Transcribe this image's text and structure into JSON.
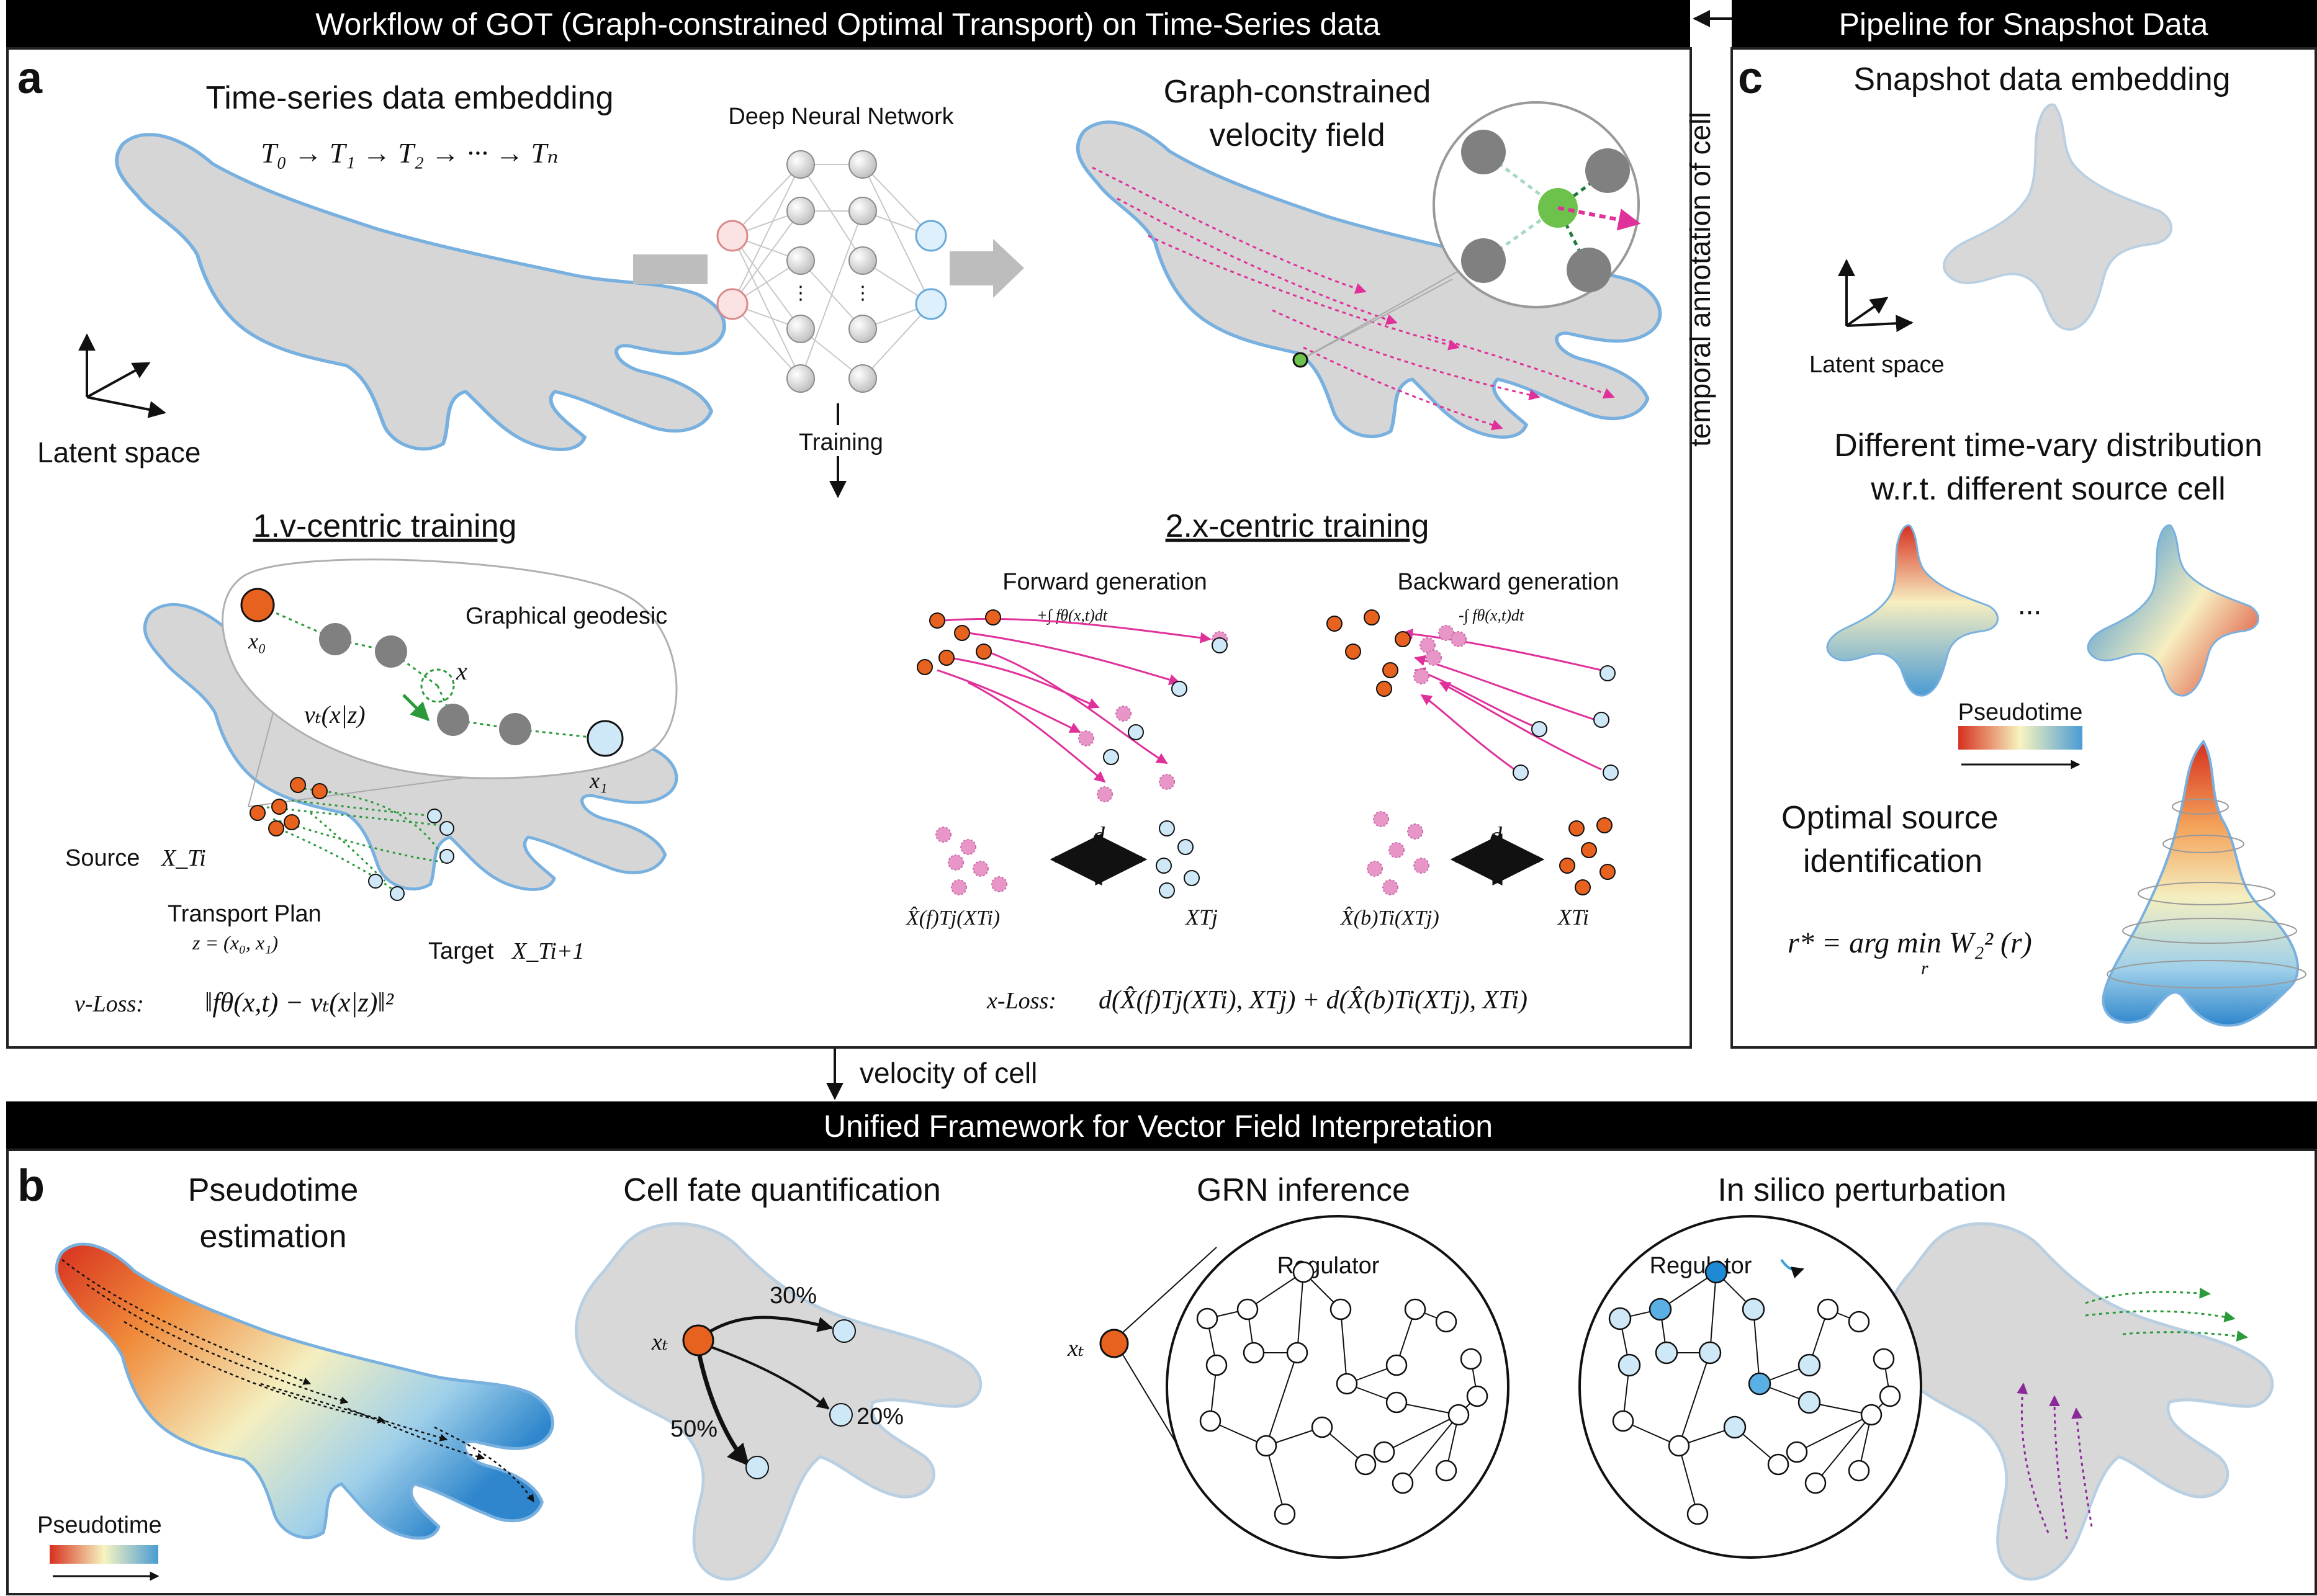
{
  "banners": {
    "top": "Workflow of GOT (Graph-constrained Optimal Transport) on Time-Series data",
    "right": "Pipeline for Snapshot Data",
    "bottom": "Unified Framework for Vector Field Interpretation"
  },
  "panel_letters": {
    "a": "a",
    "b": "b",
    "c": "c"
  },
  "panel_a": {
    "embedding_title": "Time-series data embedding",
    "time_sequence": "T₀ → T₁ → T₂ → ··· → Tₙ",
    "latent_space": "Latent space",
    "dnn_title": "Deep Neural Network",
    "training": "Training",
    "velocity_title_line1": "Graph-constrained",
    "velocity_title_line2": "velocity field",
    "v_centric": {
      "title": "1.v-centric training",
      "graphical_geodesic": "Graphical geodesic",
      "x0": "x₀",
      "x": "x",
      "x1": "x₁",
      "vt": "vₜ(x|z)",
      "source": "Source",
      "source_sym": "X_Ti",
      "transport_plan": "Transport Plan",
      "z_eq": "z = (x₀, x₁)",
      "target": "Target",
      "target_sym": "X_Ti+1",
      "loss_label": "v-Loss:",
      "loss_formula": "‖fθ(x,t) − vₜ(x|z)‖²"
    },
    "x_centric": {
      "title": "2.x-centric training",
      "forward": "Forward generation",
      "backward": "Backward generation",
      "forward_integral": "+∫ fθ(x,t)dt",
      "backward_integral": "-∫ fθ(x,t)dt",
      "d1": "d",
      "d2": "d",
      "xhat_f": "X̂(f)Tj(XTi)",
      "xtj": "XTj",
      "xhat_b": "X̂(b)Ti(XTj)",
      "xti": "XTi",
      "loss_label": "x-Loss:",
      "loss_formula": "d(X̂(f)Tj(XTi), XTj) + d(X̂(b)Ti(XTj), XTi)"
    }
  },
  "side_label": "temporal annotation of cell",
  "velocity_of_cell": "velocity of cell",
  "panel_c": {
    "snapshot_title": "Snapshot data embedding",
    "latent_space": "Latent space",
    "dist_title_line1": "Different time-vary distribution",
    "dist_title_line2": "w.r.t. different source cell",
    "ellipsis": "...",
    "pseudotime": "Pseudotime",
    "optimal_line1": "Optimal source",
    "optimal_line2": "identification",
    "formula": "r* = arg min W₂² (r)",
    "formula_sub": "r"
  },
  "panel_b": {
    "pseudotime_title_line1": "Pseudotime",
    "pseudotime_title_line2": "estimation",
    "pseudotime_legend": "Pseudotime",
    "cell_fate_title": "Cell fate quantification",
    "xt": "xₜ",
    "p30": "30%",
    "p20": "20%",
    "p50": "50%",
    "grn_title": "GRN inference",
    "grn_xt": "xₜ",
    "regulator": "Regulator",
    "perturb_title": "In silico perturbation",
    "perturb_regulator": "Regulator"
  },
  "colors": {
    "banner": "#000000",
    "source_orange": "#e8621f",
    "target_blue": "#cfe8f7",
    "magenta": "#e0309a",
    "green": "#2a9a3a",
    "purple": "#8a2a9a",
    "pseudotime_start": "#d7301f",
    "pseudotime_mid": "#f7f4c0",
    "pseudotime_end": "#4a9bd4"
  }
}
